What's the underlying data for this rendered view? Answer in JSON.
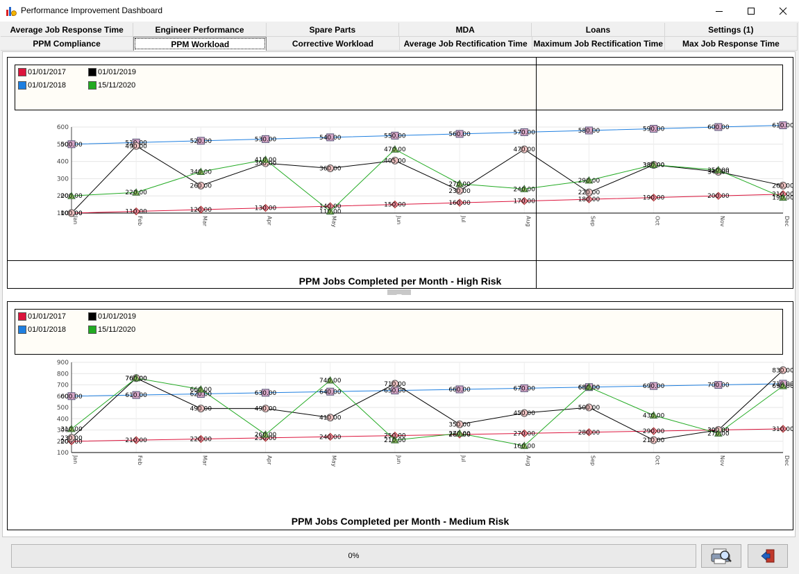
{
  "window": {
    "title": "Performance Improvement Dashboard",
    "minimize_icon": "minimize-icon",
    "maximize_icon": "maximize-icon",
    "close_icon": "close-icon"
  },
  "tabs_row1": [
    "Average Job Response Time",
    "Engineer Performance",
    "Spare Parts",
    "MDA",
    "Loans",
    "Settings (1)"
  ],
  "tabs_row2": [
    "PPM Compliance",
    "PPM Workload",
    "Corrective Workload",
    "Average Job Rectification Time",
    "Maximum Job Rectification Time",
    "Max Job Response Time"
  ],
  "active_tab": "PPM Workload",
  "colors": {
    "s2017": "#dc143c",
    "s2018": "#1e7fe0",
    "s2019": "#000000",
    "s2020": "#22aa22"
  },
  "chart_data": [
    {
      "type": "line",
      "title": "PPM Jobs Completed per Month - High Risk",
      "categories": [
        "Jan",
        "Feb",
        "Mar",
        "Apr",
        "May",
        "Jun",
        "Jul",
        "Aug",
        "Sep",
        "Oct",
        "Nov",
        "Dec"
      ],
      "ylim": [
        100,
        600
      ],
      "yticks": [
        "600",
        "500",
        "400",
        "300",
        "200",
        "100"
      ],
      "grid": true,
      "legend_position": "top",
      "series": [
        {
          "name": "01/01/2017",
          "values": [
            100,
            110,
            120,
            130,
            140,
            150,
            160,
            170,
            180,
            190,
            200,
            210
          ],
          "labels": [
            "100.00",
            "110.00",
            "120.00",
            "130.00",
            "140.00",
            "150.00",
            "160.00",
            "170.00",
            "180.00",
            "190.00",
            "200.00",
            "210.00"
          ]
        },
        {
          "name": "01/01/2018",
          "values": [
            500,
            510,
            520,
            530,
            540,
            550,
            560,
            570,
            580,
            590,
            600,
            610
          ],
          "labels": [
            "500.00",
            "510.00",
            "520.00",
            "530.00",
            "540.00",
            "550.00",
            "560.00",
            "570.00",
            "580.00",
            "590.00",
            "600.00",
            "610.00"
          ]
        },
        {
          "name": "01/01/2019",
          "values": [
            100,
            490,
            260,
            390,
            360,
            405,
            230,
            470,
            220,
            380,
            340,
            260
          ],
          "labels": [
            "100.00",
            "490.00",
            "260.00",
            "390.00",
            "360.00",
            "405.00",
            "230.00",
            "470.00",
            "220.00",
            "380.00",
            "340.00",
            "260.00"
          ]
        },
        {
          "name": "15/11/2020",
          "values": [
            200,
            220,
            340,
            410,
            110,
            470,
            270,
            240,
            290,
            380,
            350,
            190
          ],
          "labels": [
            "200.00",
            "220.00",
            "340.00",
            "410.00",
            "110.00",
            "470.00",
            "270.00",
            "240.00",
            "290.00",
            "380.00",
            "350.00",
            "190.00"
          ]
        }
      ]
    },
    {
      "type": "line",
      "title": "PPM Jobs Completed per Month - Medium Risk",
      "categories": [
        "Jan",
        "Feb",
        "Mar",
        "Apr",
        "May",
        "Jun",
        "Jul",
        "Aug",
        "Sep",
        "Oct",
        "Nov",
        "Dec"
      ],
      "ylim": [
        100,
        900
      ],
      "yticks": [
        "900",
        "800",
        "700",
        "600",
        "500",
        "400",
        "300",
        "200",
        "100"
      ],
      "grid": true,
      "legend_position": "top",
      "series": [
        {
          "name": "01/01/2017",
          "values": [
            200,
            210,
            220,
            230,
            240,
            250,
            260,
            270,
            280,
            290,
            300,
            310
          ],
          "labels": [
            "200.00",
            "210.00",
            "220.00",
            "230.00",
            "240.00",
            "250.00",
            "260.00",
            "270.00",
            "280.00",
            "290.00",
            "300.00",
            "310.00"
          ]
        },
        {
          "name": "01/01/2018",
          "values": [
            600,
            610,
            620,
            630,
            640,
            650,
            660,
            670,
            680,
            690,
            700,
            710
          ],
          "labels": [
            "600.00",
            "610.00",
            "620.00",
            "630.00",
            "640.00",
            "650.00",
            "660.00",
            "670.00",
            "680.00",
            "690.00",
            "700.00",
            "710.00"
          ]
        },
        {
          "name": "01/01/2019",
          "values": [
            230,
            760,
            490,
            490,
            410,
            710,
            350,
            450,
            500,
            210,
            300,
            830
          ],
          "labels": [
            "230.00",
            "760.00",
            "490.00",
            "490.00",
            "410.00",
            "710.00",
            "350.00",
            "450.00",
            "500.00",
            "210.00",
            "300.00",
            "830.00"
          ]
        },
        {
          "name": "15/11/2020",
          "values": [
            310,
            760,
            660,
            260,
            740,
            210,
            270,
            160,
            680,
            430,
            270,
            690
          ],
          "labels": [
            "310.00",
            "760.00",
            "660.00",
            "260.00",
            "740.00",
            "210.00",
            "270.00",
            "160.00",
            "680.00",
            "430.00",
            "270.00",
            "690.00"
          ]
        }
      ]
    }
  ],
  "status": {
    "progress_text": "0%",
    "progress_value": 0
  },
  "buttons": {
    "print_icon": "printer-icon",
    "exit_icon": "exit-icon"
  }
}
